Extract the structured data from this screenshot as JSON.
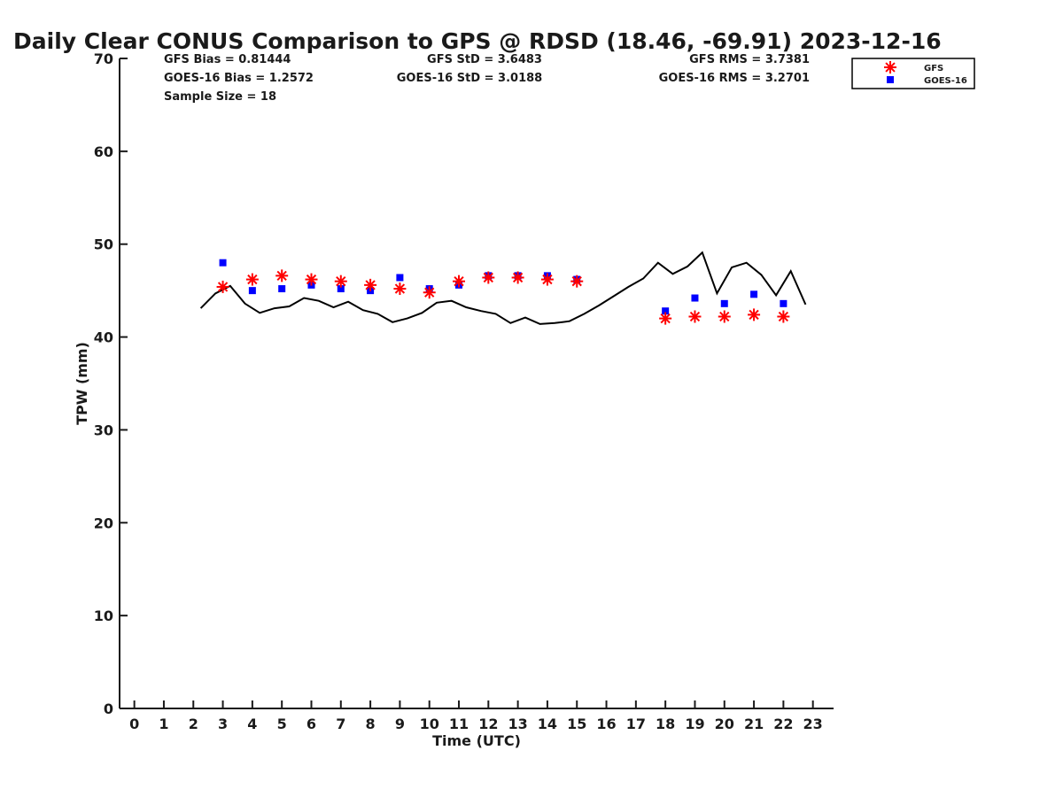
{
  "chart_data": {
    "type": "scatter",
    "title": "Daily Clear CONUS Comparison to GPS @ RDSD (18.46, -69.91) 2023-12-16",
    "xlabel": "Time (UTC)",
    "ylabel": "TPW (mm)",
    "xlim": [
      -0.5,
      23.7
    ],
    "ylim": [
      0,
      70
    ],
    "x_ticks": [
      0,
      1,
      2,
      3,
      4,
      5,
      6,
      7,
      8,
      9,
      10,
      11,
      12,
      13,
      14,
      15,
      16,
      17,
      18,
      19,
      20,
      21,
      22,
      23
    ],
    "y_ticks": [
      0,
      10,
      20,
      30,
      40,
      50,
      60,
      70
    ],
    "grid": false,
    "legend_position": "top-right",
    "stats": {
      "gfs_bias": "GFS Bias = 0.81444",
      "goes_bias": "GOES-16 Bias = 1.2572",
      "sample_size": "Sample Size = 18",
      "gfs_std": "GFS StD = 3.6483",
      "goes_std": "GOES-16 StD = 3.0188",
      "gfs_rms": "GFS RMS = 3.7381",
      "goes_rms": "GOES-16 RMS = 3.2701"
    },
    "series": [
      {
        "name": "GFS",
        "marker": "asterisk",
        "color": "#ff0000",
        "x": [
          3,
          4,
          5,
          6,
          7,
          8,
          9,
          10,
          11,
          12,
          13,
          14,
          15,
          18,
          19,
          20,
          21,
          22
        ],
        "y": [
          45.4,
          46.2,
          46.6,
          46.2,
          46.0,
          45.6,
          45.2,
          44.8,
          46.0,
          46.4,
          46.4,
          46.2,
          46.0,
          42.0,
          42.2,
          42.2,
          42.4,
          42.2
        ]
      },
      {
        "name": "GOES-16",
        "marker": "square",
        "color": "#0000ff",
        "x": [
          3,
          4,
          5,
          6,
          7,
          8,
          9,
          10,
          11,
          12,
          13,
          14,
          15,
          18,
          19,
          20,
          21,
          22
        ],
        "y": [
          48.0,
          45.0,
          45.2,
          45.6,
          45.2,
          45.0,
          46.4,
          45.2,
          45.6,
          46.6,
          46.6,
          46.6,
          46.2,
          42.8,
          44.2,
          43.6,
          44.6,
          43.6
        ]
      },
      {
        "name": "",
        "marker": "line",
        "color": "#000000",
        "x": [
          2.25,
          2.75,
          3.25,
          3.75,
          4.25,
          4.75,
          5.25,
          5.75,
          6.25,
          6.75,
          7.25,
          7.75,
          8.25,
          8.75,
          9.25,
          9.75,
          10.25,
          10.75,
          11.25,
          11.75,
          12.25,
          12.75,
          13.25,
          13.75,
          14.25,
          14.75,
          15.25,
          15.75,
          16.25,
          16.75,
          17.25,
          17.75,
          18.25,
          18.75,
          19.25,
          19.75,
          20.25,
          20.75,
          21.25,
          21.75,
          22.25,
          22.75
        ],
        "y": [
          43.1,
          44.7,
          45.5,
          43.6,
          42.6,
          43.1,
          43.3,
          44.2,
          43.9,
          43.2,
          43.8,
          42.9,
          42.5,
          41.6,
          42.0,
          42.6,
          43.7,
          43.9,
          43.2,
          42.8,
          42.5,
          41.5,
          42.1,
          41.4,
          41.5,
          41.7,
          42.5,
          43.4,
          44.4,
          45.4,
          46.3,
          48.0,
          46.8,
          47.6,
          49.1,
          44.7,
          47.5,
          48.0,
          46.7,
          44.5,
          47.1,
          43.5
        ]
      }
    ]
  }
}
